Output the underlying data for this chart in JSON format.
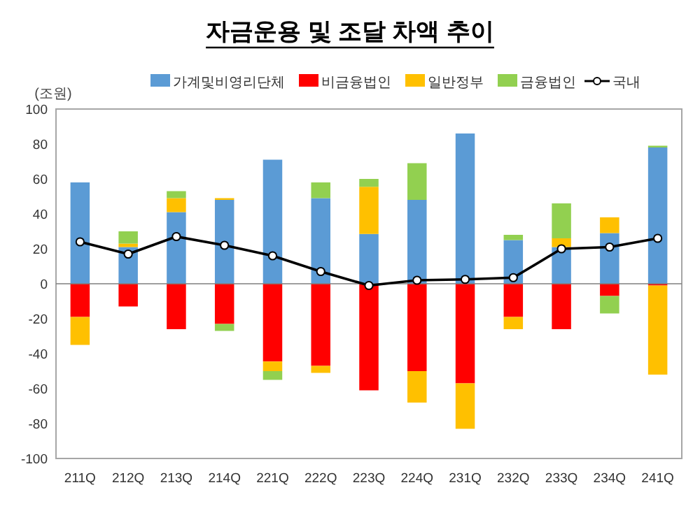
{
  "chart_data": {
    "type": "bar",
    "title": "자금운용 및 조달 차액 추이",
    "ylabel": "(조원)",
    "stacked": true,
    "categories": [
      "211Q",
      "212Q",
      "213Q",
      "214Q",
      "221Q",
      "222Q",
      "223Q",
      "224Q",
      "231Q",
      "232Q",
      "233Q",
      "234Q",
      "241Q"
    ],
    "series": [
      {
        "name": "가계및비영리단체",
        "color": "#5b9bd5",
        "values": [
          58,
          21,
          41,
          48,
          71,
          49,
          28.5,
          48,
          86,
          25,
          21,
          29,
          78
        ]
      },
      {
        "name": "비금융법인",
        "color": "#ff0000",
        "values": [
          -19,
          -13,
          -26,
          -23,
          -44.5,
          -47,
          -61,
          -50,
          -57,
          -19,
          -26,
          -7,
          -1
        ]
      },
      {
        "name": "일반정부",
        "color": "#ffc000",
        "values": [
          -16,
          2,
          8,
          1,
          -5.5,
          -4,
          27,
          -18,
          -26,
          -7,
          5,
          9,
          -51
        ]
      },
      {
        "name": "금융법인",
        "color": "#92d050",
        "values": [
          null,
          7,
          4,
          -4,
          -5,
          9,
          4.5,
          21,
          null,
          3,
          20,
          -10,
          1
        ]
      },
      {
        "name": "국내",
        "type": "line",
        "color": "#000000",
        "marker": "circle",
        "values": [
          24,
          17,
          27,
          22,
          16,
          7,
          -1,
          2,
          2.5,
          3.5,
          20,
          21,
          26
        ]
      }
    ],
    "ylim": [
      -100,
      100
    ],
    "yticks": [
      -100,
      -80,
      -60,
      -40,
      -20,
      0,
      20,
      40,
      60,
      80,
      100
    ],
    "legend": "top"
  }
}
